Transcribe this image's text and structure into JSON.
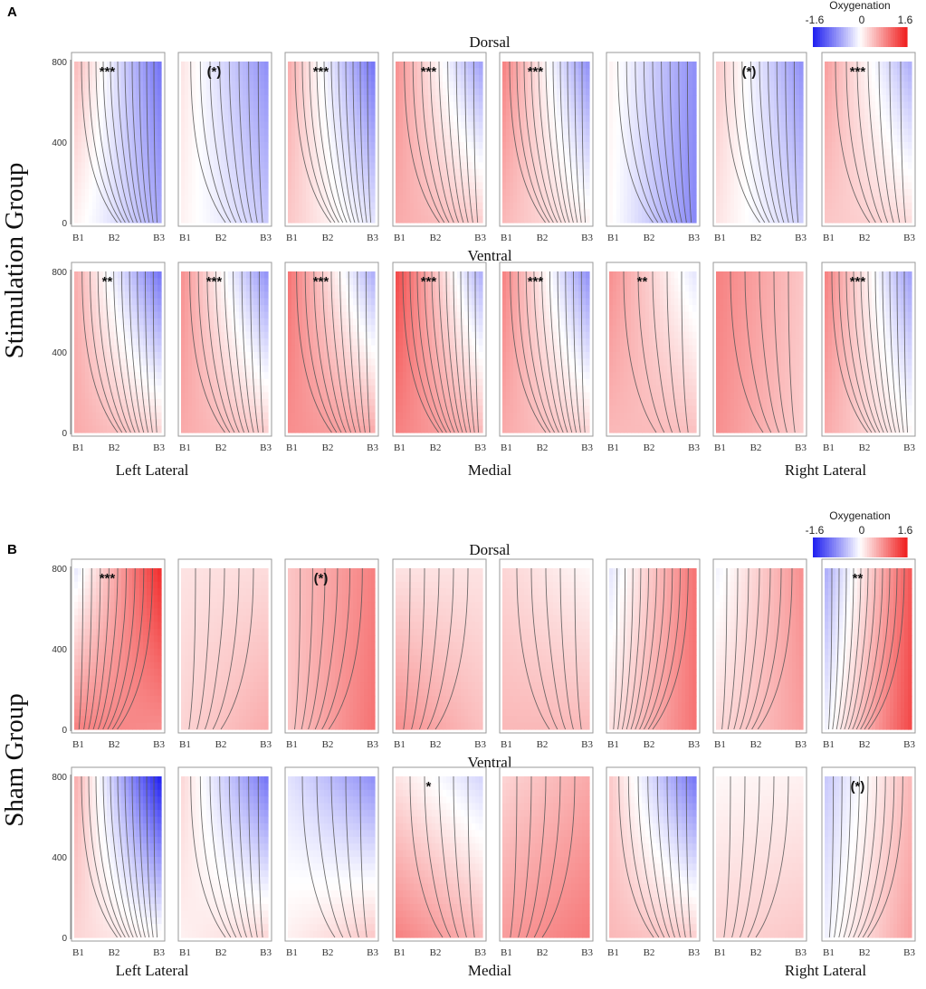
{
  "chart_data": {
    "type": "heatmap",
    "colorbar": {
      "title": "Oxygenation",
      "min": -1.6,
      "mid": 0,
      "max": 1.6,
      "tick_labels": [
        "-1.6",
        "0",
        "1.6"
      ],
      "colors": [
        "#1d1df0",
        "#ffffff",
        "#f01d1d"
      ]
    },
    "x_ticks": [
      "B1",
      "B2",
      "B3"
    ],
    "y_ticks": [
      "0",
      "400",
      "800"
    ],
    "ylim": [
      0,
      800
    ],
    "column_labels": [
      "Left Lateral",
      "Medial",
      "Right Lateral"
    ],
    "groups": [
      {
        "letter": "A",
        "label": "Stimulation Group",
        "rows": [
          {
            "label": "Dorsal",
            "panels": [
              {
                "sig": "***",
                "z": [
                  [
                    0.5,
                    -1.0
                  ],
                  [
                    0.1,
                    -0.6
                  ]
                ]
              },
              {
                "sig": "(*)",
                "z": [
                  [
                    0.2,
                    -0.8
                  ],
                  [
                    0.1,
                    -0.4
                  ]
                ]
              },
              {
                "sig": "***",
                "z": [
                  [
                    0.6,
                    -1.0
                  ],
                  [
                    0.4,
                    -0.2
                  ]
                ]
              },
              {
                "sig": "***",
                "z": [
                  [
                    0.8,
                    -0.7
                  ],
                  [
                    0.6,
                    0.35
                  ]
                ]
              },
              {
                "sig": "***",
                "z": [
                  [
                    0.9,
                    -0.8
                  ],
                  [
                    0.5,
                    0.1
                  ]
                ]
              },
              {
                "sig": "",
                "z": [
                  [
                    0.1,
                    -0.8
                  ],
                  [
                    0.05,
                    -0.85
                  ]
                ]
              },
              {
                "sig": "(*)",
                "z": [
                  [
                    0.4,
                    -0.8
                  ],
                  [
                    0.2,
                    -0.35
                  ]
                ]
              },
              {
                "sig": "***",
                "z": [
                  [
                    0.7,
                    -0.6
                  ],
                  [
                    0.4,
                    0.25
                  ]
                ]
              }
            ]
          },
          {
            "label": "Ventral",
            "panels": [
              {
                "sig": "**",
                "z": [
                  [
                    0.6,
                    -1.0
                  ],
                  [
                    0.6,
                    0.3
                  ]
                ]
              },
              {
                "sig": "***",
                "z": [
                  [
                    0.8,
                    -0.8
                  ],
                  [
                    0.6,
                    0.35
                  ]
                ]
              },
              {
                "sig": "***",
                "z": [
                  [
                    1.0,
                    -0.6
                  ],
                  [
                    0.8,
                    0.6
                  ]
                ]
              },
              {
                "sig": "***",
                "z": [
                  [
                    1.3,
                    -0.6
                  ],
                  [
                    0.9,
                    0.5
                  ]
                ]
              },
              {
                "sig": "***",
                "z": [
                  [
                    0.9,
                    -0.8
                  ],
                  [
                    0.6,
                    0.3
                  ]
                ]
              },
              {
                "sig": "**",
                "z": [
                  [
                    0.8,
                    -0.2
                  ],
                  [
                    0.5,
                    0.45
                  ]
                ]
              },
              {
                "sig": "",
                "z": [
                  [
                    0.9,
                    0.4
                  ],
                  [
                    0.8,
                    0.35
                  ]
                ]
              },
              {
                "sig": "***",
                "z": [
                  [
                    0.9,
                    -0.7
                  ],
                  [
                    0.6,
                    0.05
                  ]
                ]
              }
            ]
          }
        ]
      },
      {
        "letter": "B",
        "label": "Sham Group",
        "rows": [
          {
            "label": "Dorsal",
            "panels": [
              {
                "sig": "***",
                "z": [
                  [
                    -0.2,
                    1.5
                  ],
                  [
                    0.9,
                    0.8
                  ]
                ]
              },
              {
                "sig": "",
                "z": [
                  [
                    0.2,
                    0.25
                  ],
                  [
                    0.3,
                    0.6
                  ]
                ]
              },
              {
                "sig": "(*)",
                "z": [
                  [
                    0.4,
                    0.9
                  ],
                  [
                    0.4,
                    1.0
                  ]
                ]
              },
              {
                "sig": "",
                "z": [
                  [
                    0.2,
                    0.2
                  ],
                  [
                    0.8,
                    0.45
                  ]
                ]
              },
              {
                "sig": "",
                "z": [
                  [
                    0.3,
                    0.05
                  ],
                  [
                    0.5,
                    0.5
                  ]
                ]
              },
              {
                "sig": "",
                "z": [
                  [
                    -0.2,
                    1.0
                  ],
                  [
                    0.2,
                    1.0
                  ]
                ]
              },
              {
                "sig": "",
                "z": [
                  [
                    -0.1,
                    0.8
                  ],
                  [
                    0.25,
                    0.7
                  ]
                ]
              },
              {
                "sig": "**",
                "z": [
                  [
                    -0.6,
                    1.2
                  ],
                  [
                    -0.1,
                    1.3
                  ]
                ]
              }
            ]
          },
          {
            "label": "Ventral",
            "panels": [
              {
                "sig": "",
                "z": [
                  [
                    0.6,
                    -1.6
                  ],
                  [
                    0.3,
                    0.05
                  ]
                ]
              },
              {
                "sig": "",
                "z": [
                  [
                    0.3,
                    -1.0
                  ],
                  [
                    0.1,
                    0.3
                  ]
                ]
              },
              {
                "sig": "",
                "z": [
                  [
                    -0.2,
                    -0.8
                  ],
                  [
                    0.1,
                    0.4
                  ]
                ]
              },
              {
                "sig": "*",
                "z": [
                  [
                    0.2,
                    -0.3
                  ],
                  [
                    0.9,
                    0.5
                  ]
                ]
              },
              {
                "sig": "",
                "z": [
                  [
                    0.3,
                    0.6
                  ],
                  [
                    0.7,
                    0.95
                  ]
                ]
              },
              {
                "sig": "",
                "z": [
                  [
                    0.4,
                    -1.0
                  ],
                  [
                    0.5,
                    0.35
                  ]
                ]
              },
              {
                "sig": "",
                "z": [
                  [
                    0.05,
                    0.1
                  ],
                  [
                    0.3,
                    0.4
                  ]
                ]
              },
              {
                "sig": "(*)",
                "z": [
                  [
                    -0.4,
                    0.5
                  ],
                  [
                    -0.1,
                    0.7
                  ]
                ]
              }
            ]
          }
        ]
      }
    ]
  }
}
